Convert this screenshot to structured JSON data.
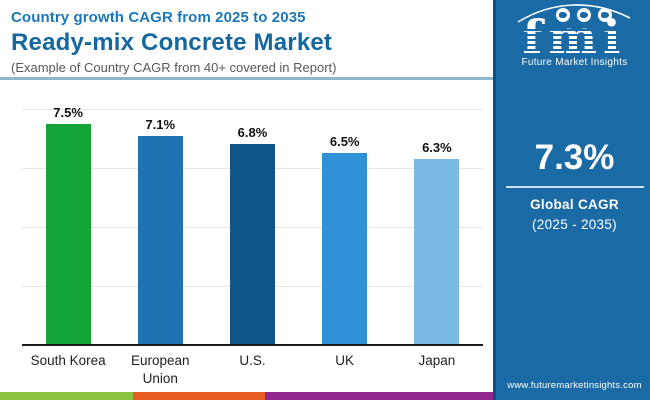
{
  "header": {
    "subtitle": "Country growth CAGR from 2025 to 2035",
    "title": "Ready-mix Concrete Market",
    "note": "(Example of Country CAGR from 40+ covered in Report)",
    "subtitle_color": "#1C77B8",
    "title_color": "#15689F"
  },
  "chart_data": {
    "type": "bar",
    "title": "Ready-mix Concrete Market - Country growth CAGR from 2025 to 2035",
    "categories": [
      "South Korea",
      "European Union",
      "U.S.",
      "UK",
      "Japan"
    ],
    "values": [
      7.5,
      7.1,
      6.8,
      6.5,
      6.3
    ],
    "value_labels": [
      "7.5%",
      "7.1%",
      "6.8%",
      "6.5%",
      "6.3%"
    ],
    "unit": "percent CAGR",
    "bar_colors": [
      "#13A538",
      "#1F73B2",
      "#0F568A",
      "#3191D6",
      "#7CB9E2"
    ],
    "ylim": [
      0,
      8.5
    ],
    "gridlines_at": [
      2,
      4,
      6,
      8
    ],
    "grid": "horizontal-light",
    "legend": "none",
    "xlabel": "",
    "ylabel": ""
  },
  "sidebar": {
    "logo_text": "fmi",
    "logo_tagline": "Future Market Insights",
    "stat_value": "7.3%",
    "stat_label_line1": "Global CAGR",
    "stat_label_line2": "(2025 - 2035)",
    "website": "www.futuremarketinsights.com",
    "background_color": "#1A6AA5"
  },
  "footer_strip_colors": [
    "#8BC43F",
    "#E65C25",
    "#92278F"
  ]
}
